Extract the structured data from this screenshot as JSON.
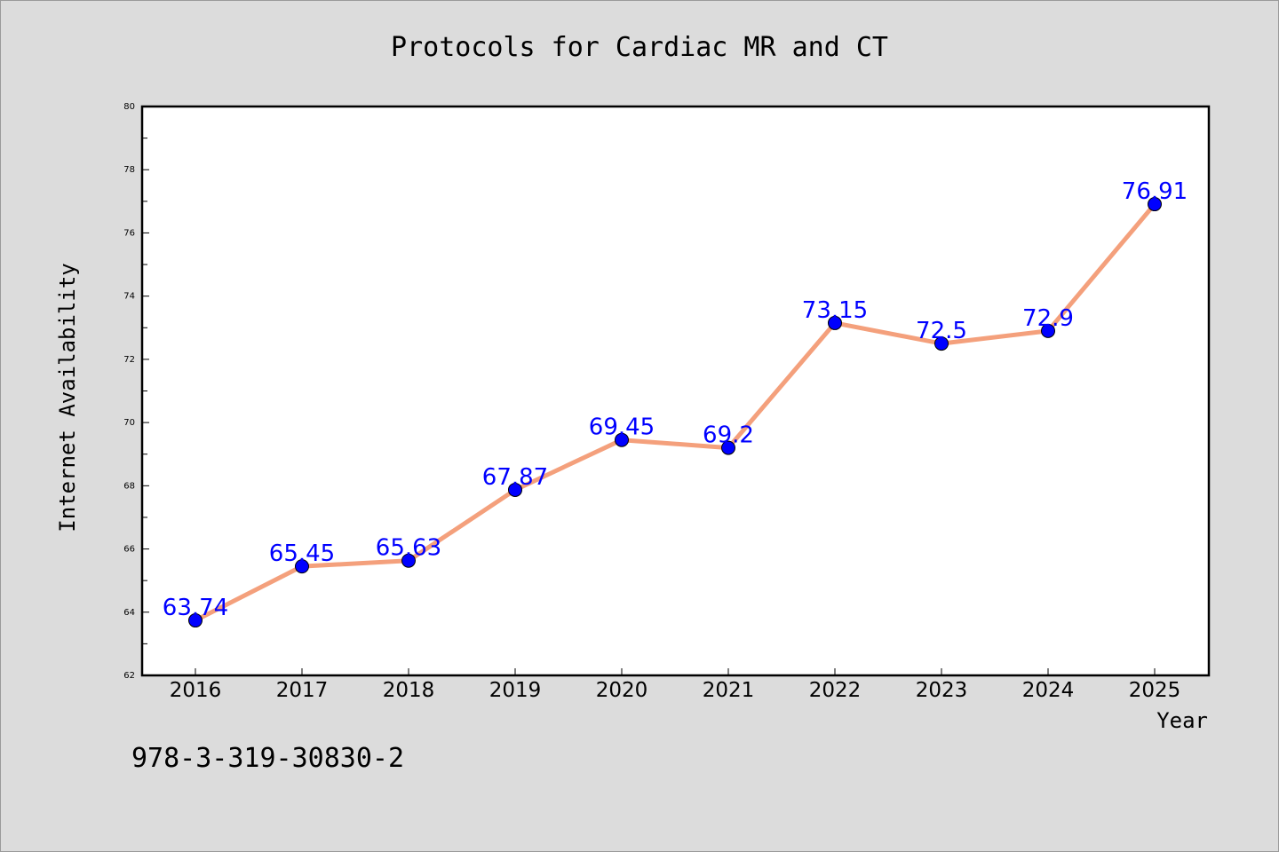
{
  "chart_data": {
    "type": "line",
    "title": "Protocols for Cardiac MR and CT",
    "xlabel": "Year",
    "ylabel": "Internet Availability",
    "x": [
      "2016",
      "2017",
      "2018",
      "2019",
      "2020",
      "2021",
      "2022",
      "2023",
      "2024",
      "2025"
    ],
    "series": [
      {
        "values": [
          63.74,
          65.45,
          65.63,
          67.87,
          69.45,
          69.2,
          73.15,
          72.5,
          72.9,
          76.91
        ],
        "labels": [
          "63.74",
          "65.45",
          "65.63",
          "67.87",
          "69.45",
          "69.2",
          "73.15",
          "72.5",
          "72.9",
          "76.91"
        ],
        "line_color": "#f4a07c",
        "marker_color": "#0000ff"
      }
    ],
    "ylim": [
      62,
      80
    ],
    "yticks": [
      "62",
      "64",
      "66",
      "68",
      "70",
      "72",
      "74",
      "76",
      "78",
      "80"
    ],
    "grid": false,
    "legend": "none"
  },
  "annotation": {
    "isbn": "978-3-319-30830-2"
  }
}
